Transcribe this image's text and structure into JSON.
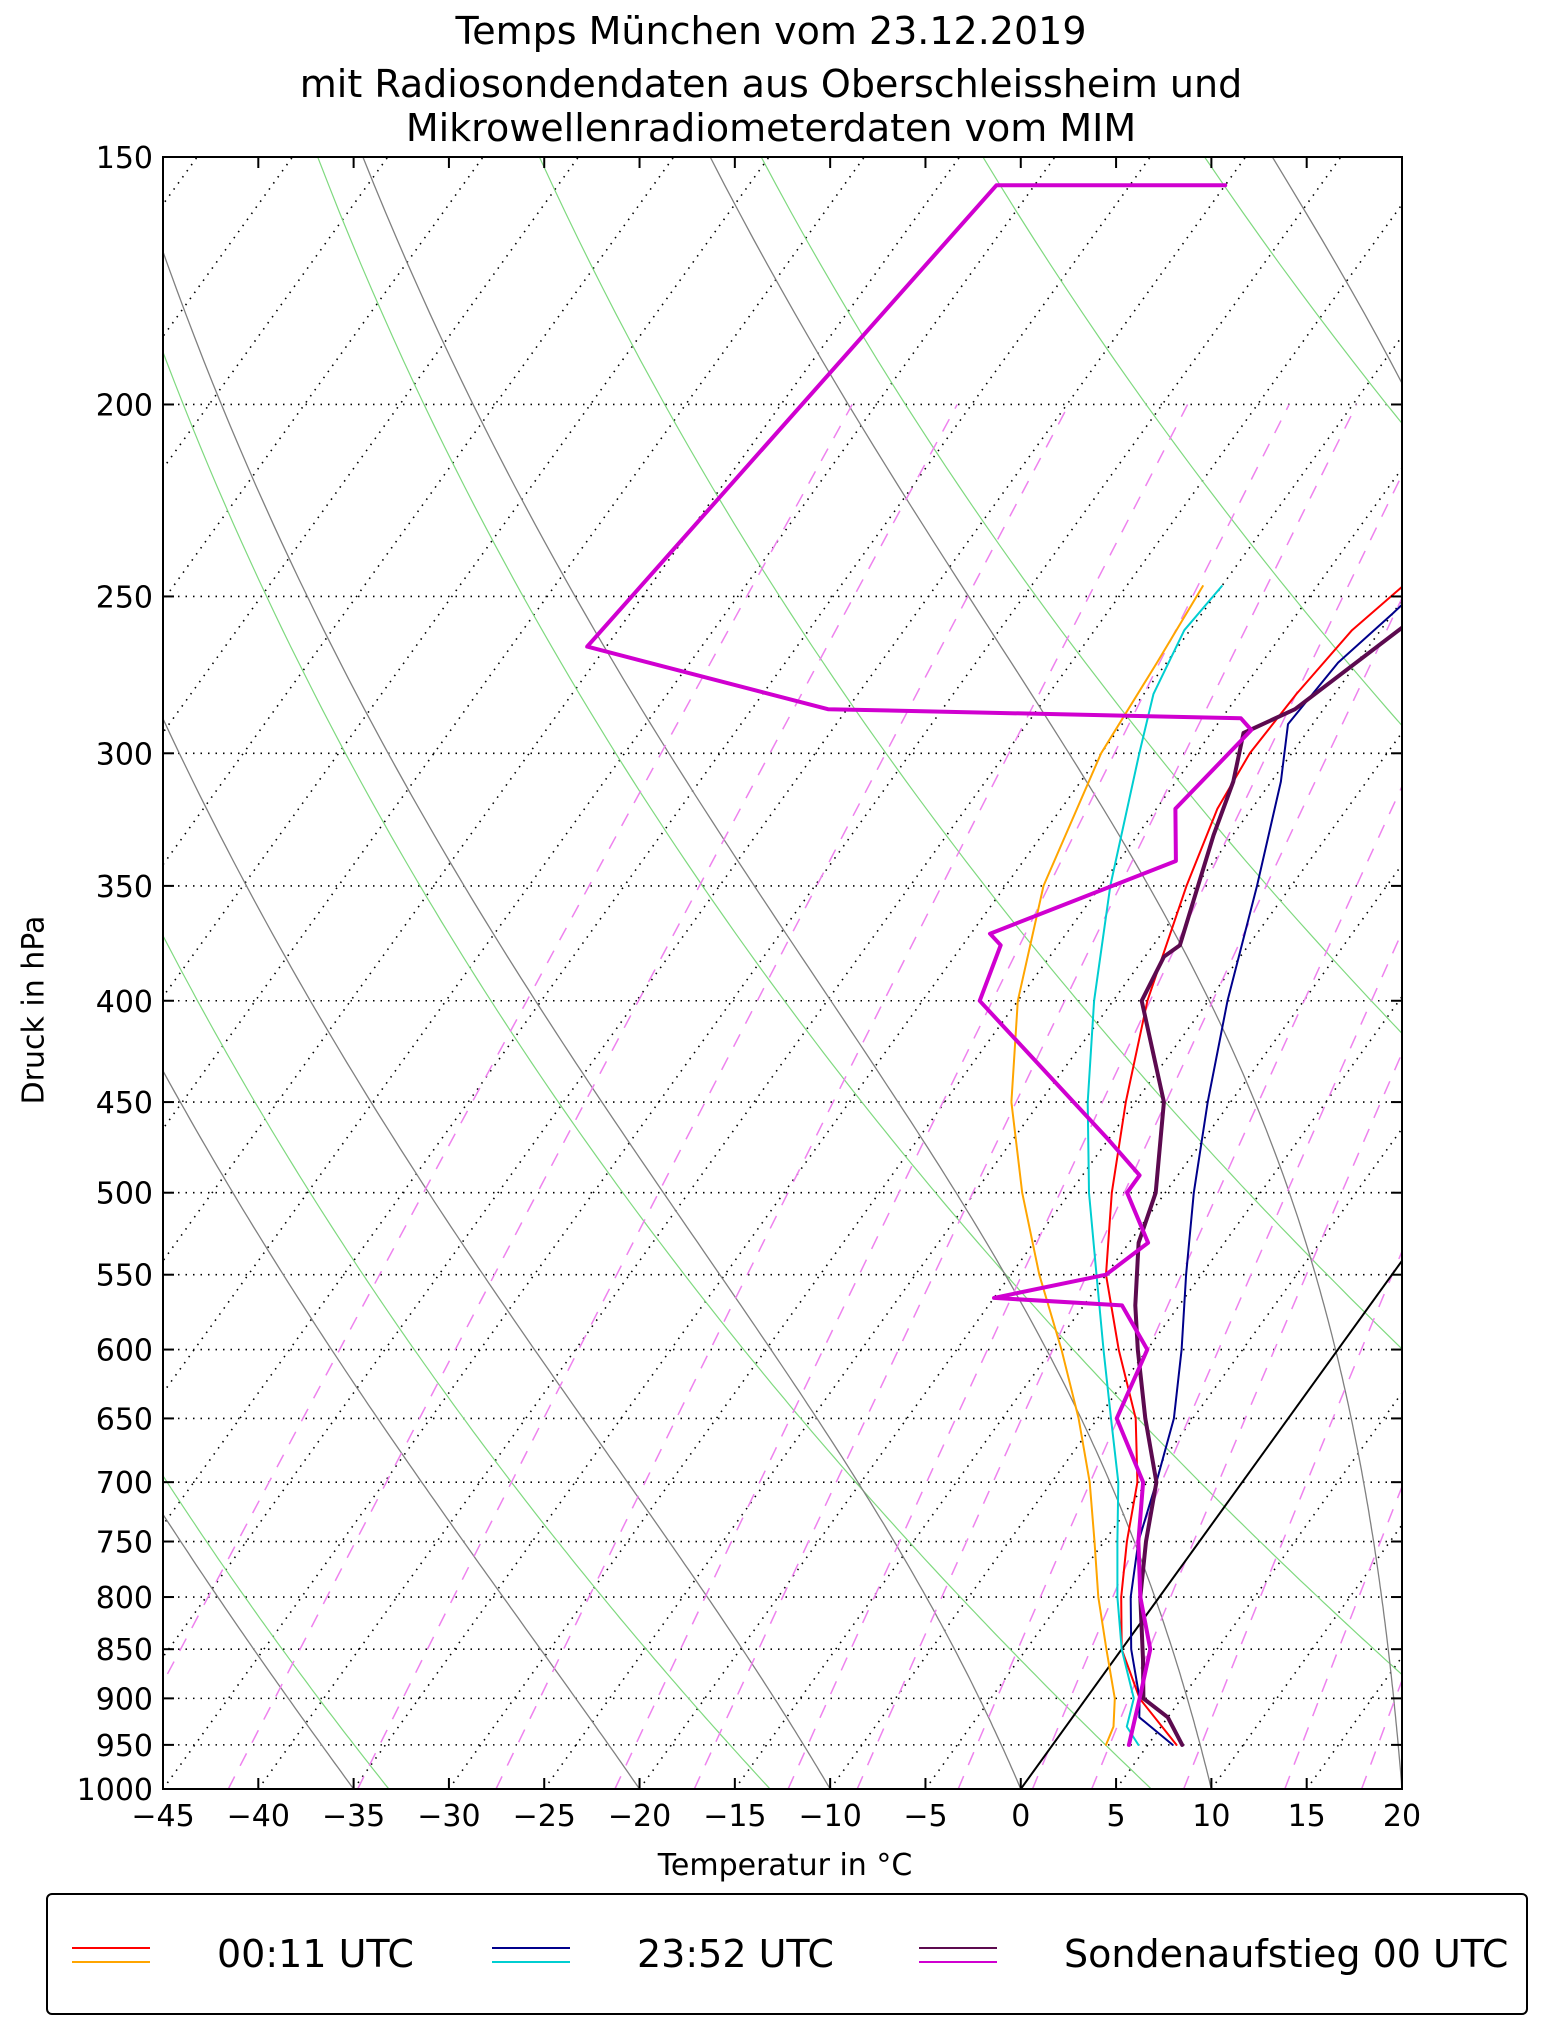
{
  "title": [
    "Temps München vom 23.12.2019",
    "mit Radiosondendaten aus Oberschleissheim und",
    "Mikrowellenradiometerdaten vom MIM"
  ],
  "chart_data": {
    "type": "line",
    "chart_kind": "Skew-T log-P diagram",
    "xlabel": "Temperatur in °C",
    "ylabel": "Druck in hPa",
    "xlim": [
      -45,
      20
    ],
    "ylim": [
      1000,
      150
    ],
    "x_ticks": [
      -45,
      -40,
      -35,
      -30,
      -25,
      -20,
      -15,
      -10,
      -5,
      0,
      5,
      10,
      15,
      20
    ],
    "y_ticks": [
      1000,
      950,
      900,
      850,
      800,
      750,
      700,
      650,
      600,
      550,
      500,
      450,
      400,
      350,
      300,
      250,
      200,
      150
    ],
    "skew_per_log10": 75,
    "series": [
      {
        "name": "00:11 UTC temperature",
        "color": "#ff0000",
        "width": 2,
        "points": [
          [
            950,
            6.5
          ],
          [
            900,
            2.8
          ],
          [
            850,
            0.0
          ],
          [
            800,
            -2.0
          ],
          [
            750,
            -3.8
          ],
          [
            700,
            -5.5
          ],
          [
            650,
            -8.0
          ],
          [
            600,
            -11.5
          ],
          [
            550,
            -15.0
          ],
          [
            500,
            -17.8
          ],
          [
            450,
            -20.5
          ],
          [
            400,
            -23.2
          ],
          [
            350,
            -25.5
          ],
          [
            320,
            -26.8
          ],
          [
            300,
            -27.2
          ],
          [
            280,
            -27.0
          ],
          [
            260,
            -26.5
          ],
          [
            247,
            -25.5
          ]
        ]
      },
      {
        "name": "00:11 UTC dewpoint",
        "color": "#ffa500",
        "width": 2,
        "points": [
          [
            950,
            2.8
          ],
          [
            930,
            2.5
          ],
          [
            900,
            1.5
          ],
          [
            850,
            -0.8
          ],
          [
            800,
            -3.2
          ],
          [
            750,
            -5.5
          ],
          [
            700,
            -8.0
          ],
          [
            650,
            -11.0
          ],
          [
            600,
            -14.5
          ],
          [
            550,
            -18.5
          ],
          [
            500,
            -22.5
          ],
          [
            450,
            -26.5
          ],
          [
            400,
            -30.0
          ],
          [
            350,
            -33.0
          ],
          [
            300,
            -35.0
          ],
          [
            270,
            -35.5
          ],
          [
            247,
            -36.0
          ]
        ]
      },
      {
        "name": "23:52 UTC temperature",
        "color": "#00008b",
        "width": 2,
        "points": [
          [
            950,
            6.3
          ],
          [
            920,
            3.5
          ],
          [
            900,
            2.8
          ],
          [
            850,
            0.5
          ],
          [
            800,
            -1.5
          ],
          [
            750,
            -3.2
          ],
          [
            700,
            -4.5
          ],
          [
            650,
            -6.0
          ],
          [
            600,
            -8.2
          ],
          [
            550,
            -10.8
          ],
          [
            500,
            -13.5
          ],
          [
            450,
            -16.2
          ],
          [
            400,
            -19.0
          ],
          [
            350,
            -21.8
          ],
          [
            310,
            -24.5
          ],
          [
            290,
            -26.3
          ],
          [
            270,
            -26.0
          ],
          [
            255,
            -25.0
          ],
          [
            247,
            -24.5
          ]
        ]
      },
      {
        "name": "23:52 UTC dewpoint",
        "color": "#00ced1",
        "width": 2,
        "points": [
          [
            950,
            4.5
          ],
          [
            930,
            3.2
          ],
          [
            900,
            2.5
          ],
          [
            850,
            0.0
          ],
          [
            800,
            -2.2
          ],
          [
            750,
            -4.3
          ],
          [
            700,
            -6.5
          ],
          [
            650,
            -9.3
          ],
          [
            600,
            -12.3
          ],
          [
            550,
            -15.5
          ],
          [
            500,
            -19.0
          ],
          [
            450,
            -22.5
          ],
          [
            400,
            -26.0
          ],
          [
            350,
            -29.5
          ],
          [
            300,
            -33.0
          ],
          [
            280,
            -34.5
          ],
          [
            260,
            -35.3
          ],
          [
            247,
            -35.0
          ]
        ]
      },
      {
        "name": "Sondenaufstieg 00 UTC temperature",
        "color": "#5c0a4f",
        "width": 4,
        "points": [
          [
            950,
            6.8
          ],
          [
            920,
            5.0
          ],
          [
            900,
            3.0
          ],
          [
            860,
            1.5
          ],
          [
            800,
            -1.0
          ],
          [
            750,
            -2.8
          ],
          [
            700,
            -4.5
          ],
          [
            650,
            -7.5
          ],
          [
            600,
            -10.5
          ],
          [
            570,
            -12.3
          ],
          [
            530,
            -14.5
          ],
          [
            500,
            -15.5
          ],
          [
            450,
            -18.5
          ],
          [
            400,
            -23.5
          ],
          [
            380,
            -24.0
          ],
          [
            375,
            -23.6
          ],
          [
            330,
            -26.0
          ],
          [
            310,
            -27.0
          ],
          [
            293,
            -28.3
          ],
          [
            285,
            -26.5
          ],
          [
            250,
            -23.0
          ],
          [
            200,
            -20.5
          ],
          [
            175,
            -18.8
          ],
          [
            150,
            -19.5
          ]
        ]
      },
      {
        "name": "Sondenaufstieg 00 UTC dewpoint",
        "color": "#d000d0",
        "width": 4,
        "points": [
          [
            950,
            4.0
          ],
          [
            900,
            2.8
          ],
          [
            850,
            1.5
          ],
          [
            800,
            -1.0
          ],
          [
            750,
            -3.2
          ],
          [
            700,
            -5.2
          ],
          [
            650,
            -9.0
          ],
          [
            600,
            -10.0
          ],
          [
            570,
            -13.0
          ],
          [
            565,
            -20.0
          ],
          [
            550,
            -15.0
          ],
          [
            530,
            -14.0
          ],
          [
            500,
            -17.0
          ],
          [
            490,
            -17.0
          ],
          [
            470,
            -20.0
          ],
          [
            400,
            -32.0
          ],
          [
            375,
            -33.0
          ],
          [
            370,
            -34.0
          ],
          [
            340,
            -27.0
          ],
          [
            320,
            -29.0
          ],
          [
            292,
            -28.0
          ],
          [
            288,
            -29.0
          ],
          [
            285,
            -51.0
          ],
          [
            265,
            -66.0
          ],
          [
            155,
            -62.0
          ],
          [
            155,
            -50.0
          ]
        ]
      }
    ],
    "legend": {
      "position": "bottom",
      "entries": [
        {
          "label": "00:11 UTC",
          "colors": [
            "#ff0000",
            "#ffa500"
          ]
        },
        {
          "label": "23:52 UTC",
          "colors": [
            "#00008b",
            "#00ced1"
          ]
        },
        {
          "label": "Sondenaufstieg 00 UTC",
          "colors": [
            "#5c0a4f",
            "#d000d0"
          ]
        }
      ]
    },
    "reference_lines": {
      "isotherm_0C": {
        "color": "#000000"
      },
      "dry_adiabats": {
        "color": "#7fd97f",
        "theta_K": [
          220,
          240,
          260,
          280,
          300,
          320,
          340,
          360,
          380,
          400,
          420,
          440,
          460,
          480,
          500,
          520
        ]
      },
      "moist_adiabats": {
        "color": "#808080",
        "start_temp_C": [
          -35,
          -20,
          -10,
          0,
          10,
          20,
          30
        ]
      },
      "mixing_ratio_lines": {
        "color": "#ee82ee",
        "w_g_per_kg": [
          0.05,
          0.1,
          0.2,
          0.4,
          0.7,
          1,
          1.5,
          2,
          3,
          4,
          5,
          7,
          10,
          13,
          16,
          20,
          25,
          30
        ],
        "top_hPa": 200
      }
    }
  }
}
